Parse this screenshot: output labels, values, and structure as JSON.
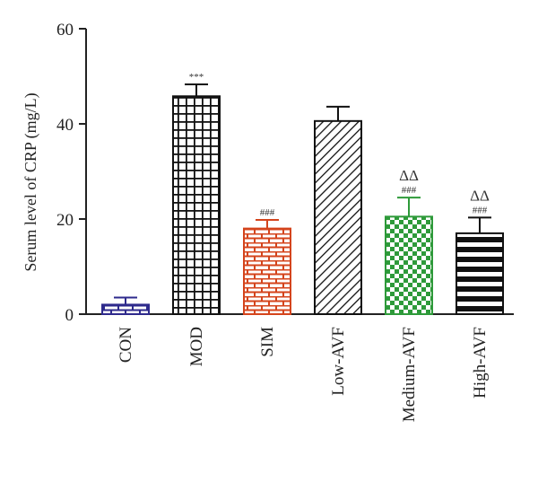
{
  "chart_data": {
    "type": "bar",
    "title": "",
    "xlabel": "",
    "ylabel": "Serum level of CRP (mg/L)",
    "ylim": [
      0,
      60
    ],
    "yticks": [
      0,
      20,
      40,
      60
    ],
    "categories": [
      "CON",
      "MOD",
      "SIM",
      "Low-AVF",
      "Medium-AVF",
      "High-AVF"
    ],
    "values": [
      2.0,
      45.8,
      18.0,
      40.6,
      20.5,
      17.0
    ],
    "errors": [
      1.5,
      2.5,
      1.8,
      3.0,
      4.0,
      3.3
    ],
    "annotations": [
      {
        "category": "MOD",
        "lines": [
          "***"
        ]
      },
      {
        "category": "SIM",
        "lines": [
          "###"
        ]
      },
      {
        "category": "Medium-AVF",
        "lines": [
          "ΔΔ",
          "###"
        ]
      },
      {
        "category": "High-AVF",
        "lines": [
          "ΔΔ",
          "###"
        ]
      }
    ],
    "bar_styles": [
      {
        "category": "CON",
        "pattern": "brick",
        "color": "#2e2a8c"
      },
      {
        "category": "MOD",
        "pattern": "grid",
        "color": "#111111"
      },
      {
        "category": "SIM",
        "pattern": "brick",
        "color": "#d4441c"
      },
      {
        "category": "Low-AVF",
        "pattern": "diagonal",
        "color": "#111111"
      },
      {
        "category": "Medium-AVF",
        "pattern": "checker",
        "color": "#2e9a3a"
      },
      {
        "category": "High-AVF",
        "pattern": "horizontal",
        "color": "#111111"
      }
    ]
  }
}
